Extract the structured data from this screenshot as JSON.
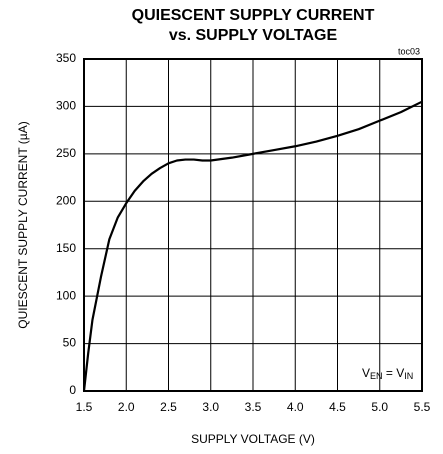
{
  "chart_data": {
    "type": "line",
    "title": [
      "QUIESCENT SUPPLY CURRENT",
      "vs. SUPPLY VOLTAGE"
    ],
    "figure_id": "toc03",
    "annotation": [
      "V",
      "EN",
      " = V",
      "IN"
    ],
    "x_label": "SUPPLY VOLTAGE (V)",
    "y_label": "QUIESCENT SUPPLY CURRENT (µA)",
    "x": [
      1.5,
      1.55,
      1.6,
      1.7,
      1.8,
      1.9,
      2.0,
      2.1,
      2.2,
      2.3,
      2.4,
      2.5,
      2.6,
      2.7,
      2.8,
      2.9,
      3.0,
      3.25,
      3.5,
      3.75,
      4.0,
      4.25,
      4.5,
      4.75,
      5.0,
      5.25,
      5.5
    ],
    "series": [
      {
        "color": "#000000",
        "values": [
          0,
          40,
          75,
          120,
          160,
          183,
          198,
          211,
          221,
          229,
          235,
          240,
          243,
          244,
          244,
          243,
          243,
          246,
          250,
          254,
          258,
          263,
          269,
          276,
          285,
          294,
          305
        ]
      }
    ],
    "xlim": [
      1.5,
      5.5
    ],
    "xticks": [
      1.5,
      {
        "value": 2,
        "label": "2.0"
      },
      2.5,
      {
        "value": 3,
        "label": "3.0"
      },
      3.5,
      {
        "value": 4,
        "label": "4.0"
      },
      4.5,
      {
        "value": 5,
        "label": "5.0"
      },
      5.5
    ],
    "ylim": [
      0,
      350
    ],
    "yticks": [
      0,
      50,
      100,
      150,
      200,
      250,
      300,
      350
    ],
    "grid": true
  }
}
